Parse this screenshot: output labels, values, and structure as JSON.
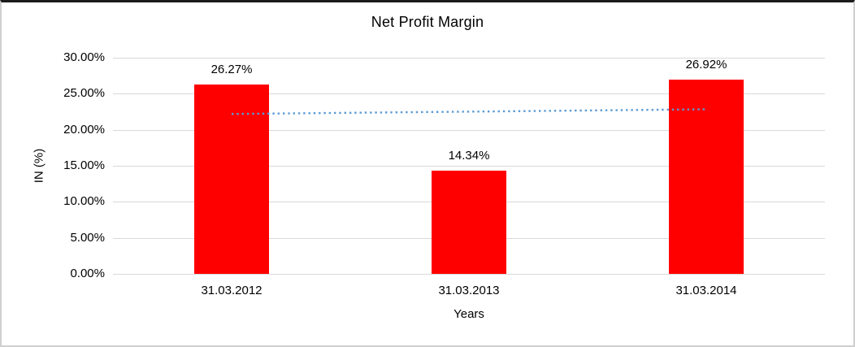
{
  "chart_data": {
    "type": "bar",
    "title": "Net Profit Margin",
    "categories": [
      "31.03.2012",
      "31.03.2013",
      "31.03.2014"
    ],
    "values": [
      26.27,
      14.34,
      26.92
    ],
    "data_labels": [
      "26.27%",
      "14.34%",
      "26.92%"
    ],
    "xlabel": "Years",
    "ylabel": "IN (%)",
    "ylim": [
      0,
      30
    ],
    "ytick_step": 5,
    "ytick_labels": [
      "0.00%",
      "5.00%",
      "10.00%",
      "15.00%",
      "20.00%",
      "25.00%",
      "30.00%"
    ],
    "grid": true,
    "legend": "none",
    "colors": {
      "bar": "#FF0000",
      "gridline": "#D9D9D9",
      "text": "#000000",
      "trendline": "#5B9BD5",
      "frame_top_border": "#1C1C1C",
      "frame_side_border": "#CFCFCF"
    },
    "trendline": {
      "type": "linear",
      "style": "dotted",
      "color": "#5B9BD5",
      "start_value": 22.19,
      "end_value": 22.84
    }
  }
}
